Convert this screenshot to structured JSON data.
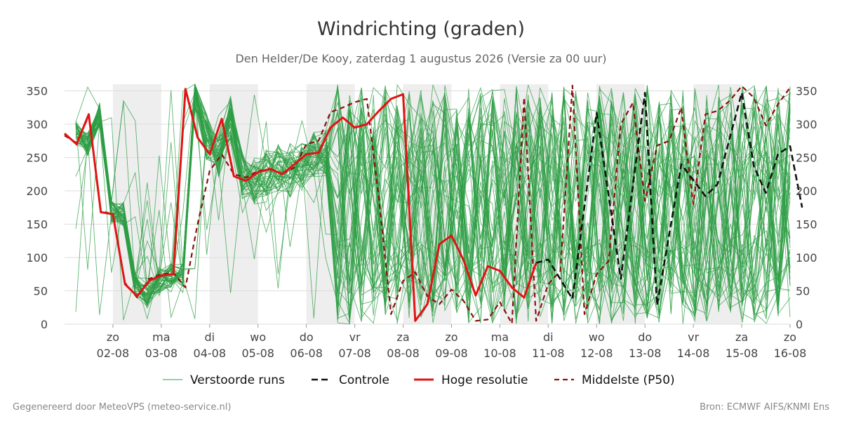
{
  "colors": {
    "ensemble": "#2e9e44",
    "control": "#111111",
    "hires": "#e01414",
    "median": "#8b1010",
    "night_band": "#eeeeee",
    "grid": "#dddddd"
  },
  "footer": {
    "left": "Gegenereerd door MeteoVPS (meteo-service.nl)",
    "right": "Bron: ECMWF AIFS/KNMI Ens"
  },
  "chart_data": {
    "type": "line",
    "title": "Windrichting (graden)",
    "subtitle": "Den Helder/De Kooy, zaterdag  1 augustus 2026 (Versie za 00 uur)",
    "xlabel": "",
    "ylabel": "",
    "ylim": [
      0,
      360
    ],
    "yticks": [
      0,
      50,
      100,
      150,
      200,
      250,
      300,
      350
    ],
    "xlim": [
      "2026-08-01T00:00",
      "2026-08-16T00:00"
    ],
    "grid": true,
    "legend_position": "bottom",
    "x_ticks": [
      {
        "day": "zo",
        "date": "02-08",
        "x": "2026-08-02T00:00"
      },
      {
        "day": "ma",
        "date": "03-08",
        "x": "2026-08-03T00:00"
      },
      {
        "day": "di",
        "date": "04-08",
        "x": "2026-08-04T00:00"
      },
      {
        "day": "wo",
        "date": "05-08",
        "x": "2026-08-05T00:00"
      },
      {
        "day": "do",
        "date": "06-08",
        "x": "2026-08-06T00:00"
      },
      {
        "day": "vr",
        "date": "07-08",
        "x": "2026-08-07T00:00"
      },
      {
        "day": "za",
        "date": "08-08",
        "x": "2026-08-08T00:00"
      },
      {
        "day": "zo",
        "date": "09-08",
        "x": "2026-08-09T00:00"
      },
      {
        "day": "ma",
        "date": "10-08",
        "x": "2026-08-10T00:00"
      },
      {
        "day": "di",
        "date": "11-08",
        "x": "2026-08-11T00:00"
      },
      {
        "day": "wo",
        "date": "12-08",
        "x": "2026-08-12T00:00"
      },
      {
        "day": "do",
        "date": "13-08",
        "x": "2026-08-13T00:00"
      },
      {
        "day": "vr",
        "date": "14-08",
        "x": "2026-08-14T00:00"
      },
      {
        "day": "za",
        "date": "15-08",
        "x": "2026-08-15T00:00"
      },
      {
        "day": "zo",
        "date": "16-08",
        "x": "2026-08-16T00:00"
      }
    ],
    "shaded_periods": [
      [
        "2026-08-02T00:00",
        "2026-08-03T00:00"
      ],
      [
        "2026-08-04T00:00",
        "2026-08-05T00:00"
      ],
      [
        "2026-08-06T00:00",
        "2026-08-07T00:00"
      ],
      [
        "2026-08-08T00:00",
        "2026-08-09T00:00"
      ],
      [
        "2026-08-10T00:00",
        "2026-08-11T00:00"
      ],
      [
        "2026-08-12T00:00",
        "2026-08-13T00:00"
      ],
      [
        "2026-08-14T00:00",
        "2026-08-15T00:00"
      ]
    ],
    "legend": [
      {
        "key": "ensemble",
        "label": "Verstoorde runs",
        "style": "thin"
      },
      {
        "key": "control",
        "label": "Controle",
        "style": "dashed"
      },
      {
        "key": "hires",
        "label": "Hoge resolutie",
        "style": "solid"
      },
      {
        "key": "median",
        "label": "Middelste (P50)",
        "style": "dashed"
      }
    ],
    "series": [
      {
        "name": "Hoge resolutie",
        "key": "hires",
        "points": [
          [
            "2026-08-01T00:00",
            286
          ],
          [
            "2026-08-01T06:00",
            270
          ],
          [
            "2026-08-01T12:00",
            315
          ],
          [
            "2026-08-01T18:00",
            168
          ],
          [
            "2026-08-02T00:00",
            165
          ],
          [
            "2026-08-02T06:00",
            60
          ],
          [
            "2026-08-02T12:00",
            42
          ],
          [
            "2026-08-02T18:00",
            65
          ],
          [
            "2026-08-03T00:00",
            73
          ],
          [
            "2026-08-03T06:00",
            75
          ],
          [
            "2026-08-03T12:00",
            353
          ],
          [
            "2026-08-03T18:00",
            280
          ],
          [
            "2026-08-04T00:00",
            255
          ],
          [
            "2026-08-04T06:00",
            308
          ],
          [
            "2026-08-04T12:00",
            222
          ],
          [
            "2026-08-04T18:00",
            215
          ],
          [
            "2026-08-05T00:00",
            228
          ],
          [
            "2026-08-05T06:00",
            233
          ],
          [
            "2026-08-05T12:00",
            225
          ],
          [
            "2026-08-05T18:00",
            240
          ],
          [
            "2026-08-06T00:00",
            255
          ],
          [
            "2026-08-06T06:00",
            257
          ],
          [
            "2026-08-06T12:00",
            295
          ],
          [
            "2026-08-06T18:00",
            310
          ],
          [
            "2026-08-07T00:00",
            295
          ],
          [
            "2026-08-07T06:00",
            300
          ],
          [
            "2026-08-07T12:00",
            320
          ],
          [
            "2026-08-07T18:00",
            338
          ],
          [
            "2026-08-08T00:00",
            345
          ],
          [
            "2026-08-08T06:00",
            5
          ],
          [
            "2026-08-08T12:00",
            30
          ],
          [
            "2026-08-08T18:00",
            120
          ],
          [
            "2026-08-09T00:00",
            133
          ],
          [
            "2026-08-09T06:00",
            96
          ],
          [
            "2026-08-09T12:00",
            43
          ],
          [
            "2026-08-09T18:00",
            87
          ],
          [
            "2026-08-10T00:00",
            80
          ],
          [
            "2026-08-10T06:00",
            55
          ],
          [
            "2026-08-10T12:00",
            40
          ],
          [
            "2026-08-10T18:00",
            92
          ]
        ]
      },
      {
        "name": "Controle",
        "key": "control",
        "points": [
          [
            "2026-08-10T18:00",
            92
          ],
          [
            "2026-08-11T00:00",
            97
          ],
          [
            "2026-08-11T12:00",
            38
          ],
          [
            "2026-08-12T00:00",
            317
          ],
          [
            "2026-08-12T12:00",
            68
          ],
          [
            "2026-08-13T00:00",
            347
          ],
          [
            "2026-08-13T06:00",
            28
          ],
          [
            "2026-08-13T18:00",
            240
          ],
          [
            "2026-08-14T06:00",
            192
          ],
          [
            "2026-08-14T12:00",
            210
          ],
          [
            "2026-08-15T00:00",
            347
          ],
          [
            "2026-08-15T06:00",
            237
          ],
          [
            "2026-08-15T12:00",
            197
          ],
          [
            "2026-08-15T18:00",
            255
          ],
          [
            "2026-08-16T00:00",
            267
          ],
          [
            "2026-08-16T06:00",
            175
          ]
        ]
      },
      {
        "name": "Middelste (P50)",
        "key": "median",
        "points": [
          [
            "2026-08-01T00:00",
            283
          ],
          [
            "2026-08-01T06:00",
            272
          ],
          [
            "2026-08-01T12:00",
            312
          ],
          [
            "2026-08-01T18:00",
            170
          ],
          [
            "2026-08-02T00:00",
            165
          ],
          [
            "2026-08-02T06:00",
            62
          ],
          [
            "2026-08-02T12:00",
            40
          ],
          [
            "2026-08-02T18:00",
            68
          ],
          [
            "2026-08-03T00:00",
            75
          ],
          [
            "2026-08-03T06:00",
            77
          ],
          [
            "2026-08-03T12:00",
            55
          ],
          [
            "2026-08-03T18:00",
            150
          ],
          [
            "2026-08-04T00:00",
            230
          ],
          [
            "2026-08-04T06:00",
            255
          ],
          [
            "2026-08-04T12:00",
            225
          ],
          [
            "2026-08-04T18:00",
            220
          ],
          [
            "2026-08-05T00:00",
            230
          ],
          [
            "2026-08-05T06:00",
            232
          ],
          [
            "2026-08-05T12:00",
            225
          ],
          [
            "2026-08-05T18:00",
            235
          ],
          [
            "2026-08-06T00:00",
            270
          ],
          [
            "2026-08-06T06:00",
            275
          ],
          [
            "2026-08-06T12:00",
            318
          ],
          [
            "2026-08-06T18:00",
            325
          ],
          [
            "2026-08-07T00:00",
            333
          ],
          [
            "2026-08-07T06:00",
            338
          ],
          [
            "2026-08-07T12:00",
            187
          ],
          [
            "2026-08-07T18:00",
            15
          ],
          [
            "2026-08-08T00:00",
            65
          ],
          [
            "2026-08-08T06:00",
            78
          ],
          [
            "2026-08-08T12:00",
            42
          ],
          [
            "2026-08-08T18:00",
            30
          ],
          [
            "2026-08-09T00:00",
            52
          ],
          [
            "2026-08-09T06:00",
            35
          ],
          [
            "2026-08-09T12:00",
            5
          ],
          [
            "2026-08-09T18:00",
            7
          ],
          [
            "2026-08-10T00:00",
            33
          ],
          [
            "2026-08-10T06:00",
            1
          ],
          [
            "2026-08-10T12:00",
            340
          ],
          [
            "2026-08-10T18:00",
            5
          ],
          [
            "2026-08-11T00:00",
            60
          ],
          [
            "2026-08-11T06:00",
            80
          ],
          [
            "2026-08-11T12:00",
            358
          ],
          [
            "2026-08-11T18:00",
            15
          ],
          [
            "2026-08-12T00:00",
            75
          ],
          [
            "2026-08-12T06:00",
            95
          ],
          [
            "2026-08-12T12:00",
            300
          ],
          [
            "2026-08-12T18:00",
            332
          ],
          [
            "2026-08-13T00:00",
            185
          ],
          [
            "2026-08-13T06:00",
            268
          ],
          [
            "2026-08-13T12:00",
            275
          ],
          [
            "2026-08-13T18:00",
            325
          ],
          [
            "2026-08-14T00:00",
            180
          ],
          [
            "2026-08-14T06:00",
            315
          ],
          [
            "2026-08-14T12:00",
            320
          ],
          [
            "2026-08-14T18:00",
            335
          ],
          [
            "2026-08-15T00:00",
            357
          ],
          [
            "2026-08-15T06:00",
            340
          ],
          [
            "2026-08-15T12:00",
            298
          ],
          [
            "2026-08-15T18:00",
            330
          ],
          [
            "2026-08-16T00:00",
            355
          ]
        ]
      }
    ]
  }
}
